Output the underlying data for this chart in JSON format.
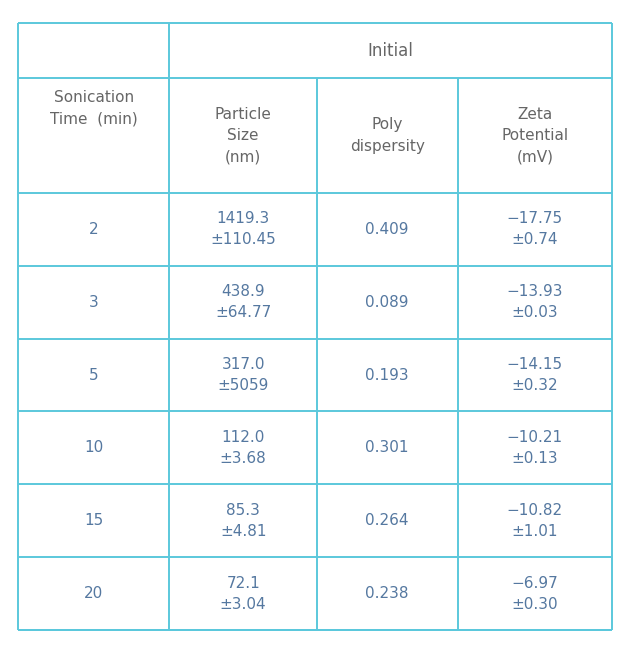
{
  "title": "Initial",
  "col0_header_line1": "Sonication",
  "col0_header_line2": "Time  (min)",
  "col_headers": [
    "Particle\nSize\n(nm)",
    "Poly\ndispersity",
    "Zeta\nPotential\n(mV)"
  ],
  "rows": [
    {
      "time": "2",
      "particle_size": "1419.3\n±110.45",
      "polydispersity": "0.409",
      "zeta": "−17.75\n±0.74"
    },
    {
      "time": "3",
      "particle_size": "438.9\n±64.77",
      "polydispersity": "0.089",
      "zeta": "−13.93\n±0.03"
    },
    {
      "time": "5",
      "particle_size": "317.0\n±5059",
      "polydispersity": "0.193",
      "zeta": "−14.15\n±0.32"
    },
    {
      "time": "10",
      "particle_size": "112.0\n±3.68",
      "polydispersity": "0.301",
      "zeta": "−10.21\n±0.13"
    },
    {
      "time": "15",
      "particle_size": "85.3\n±4.81",
      "polydispersity": "0.264",
      "zeta": "−10.82\n±1.01"
    },
    {
      "time": "20",
      "particle_size": "72.1\n±3.04",
      "polydispersity": "0.238",
      "zeta": "−6.97\n±0.30"
    }
  ],
  "border_color": "#5bc8dc",
  "text_color_header": "#666666",
  "text_color_data": "#5578a0",
  "bg_color": "#ffffff",
  "font_size": 11.0
}
